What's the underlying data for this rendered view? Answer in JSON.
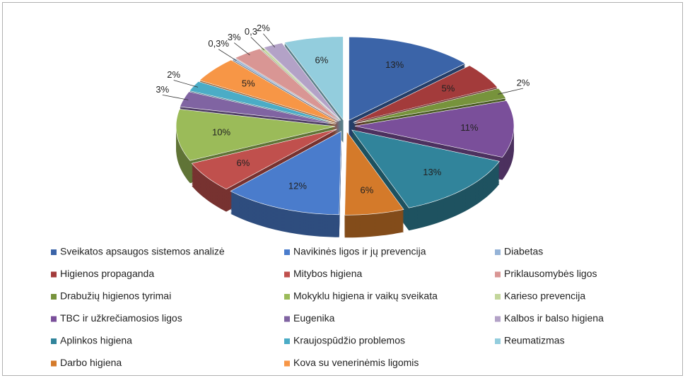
{
  "chart_data": {
    "type": "pie3d",
    "categories": [
      "Sveikatos apsaugos sistemos analizė",
      "Higienos propaganda",
      "Drabužių higienos tyrimai",
      "TBC ir užkrečiamosios ligos",
      "Aplinkos higiena",
      "Darbo higiena",
      "Navikinės ligos ir jų prevencija",
      "Mitybos higiena",
      "Mokyklu higiena ir vaikų sveikata",
      "Eugenika",
      "Kraujospūdžio problemos",
      "Kova su venerinėmis ligomis",
      "Diabetas",
      "Priklausomybės ligos",
      "Karieso prevencija",
      "Kalbos ir balso higiena",
      "Reumatizmas"
    ],
    "values": [
      13,
      5,
      2,
      11,
      13,
      6,
      12,
      6,
      10,
      3,
      2,
      5,
      0.3,
      3,
      0.3,
      2,
      6
    ],
    "value_labels": [
      "13%",
      "5%",
      "2%",
      "11%",
      "13%",
      "6%",
      "12%",
      "6%",
      "10%",
      "3%",
      "2%",
      "5%",
      "0,3%",
      "3%",
      "0,3",
      "2%",
      "6%"
    ],
    "colors": [
      "#3b64a8",
      "#a33b3b",
      "#77933c",
      "#7a4f9a",
      "#31849b",
      "#d47a2a",
      "#4a7ccc",
      "#c0504d",
      "#9bbb59",
      "#8064a2",
      "#4bacc6",
      "#f79646",
      "#95b3d7",
      "#d99694",
      "#c3d69b",
      "#b3a2c7",
      "#93cddd"
    ],
    "legend": "bottom"
  }
}
